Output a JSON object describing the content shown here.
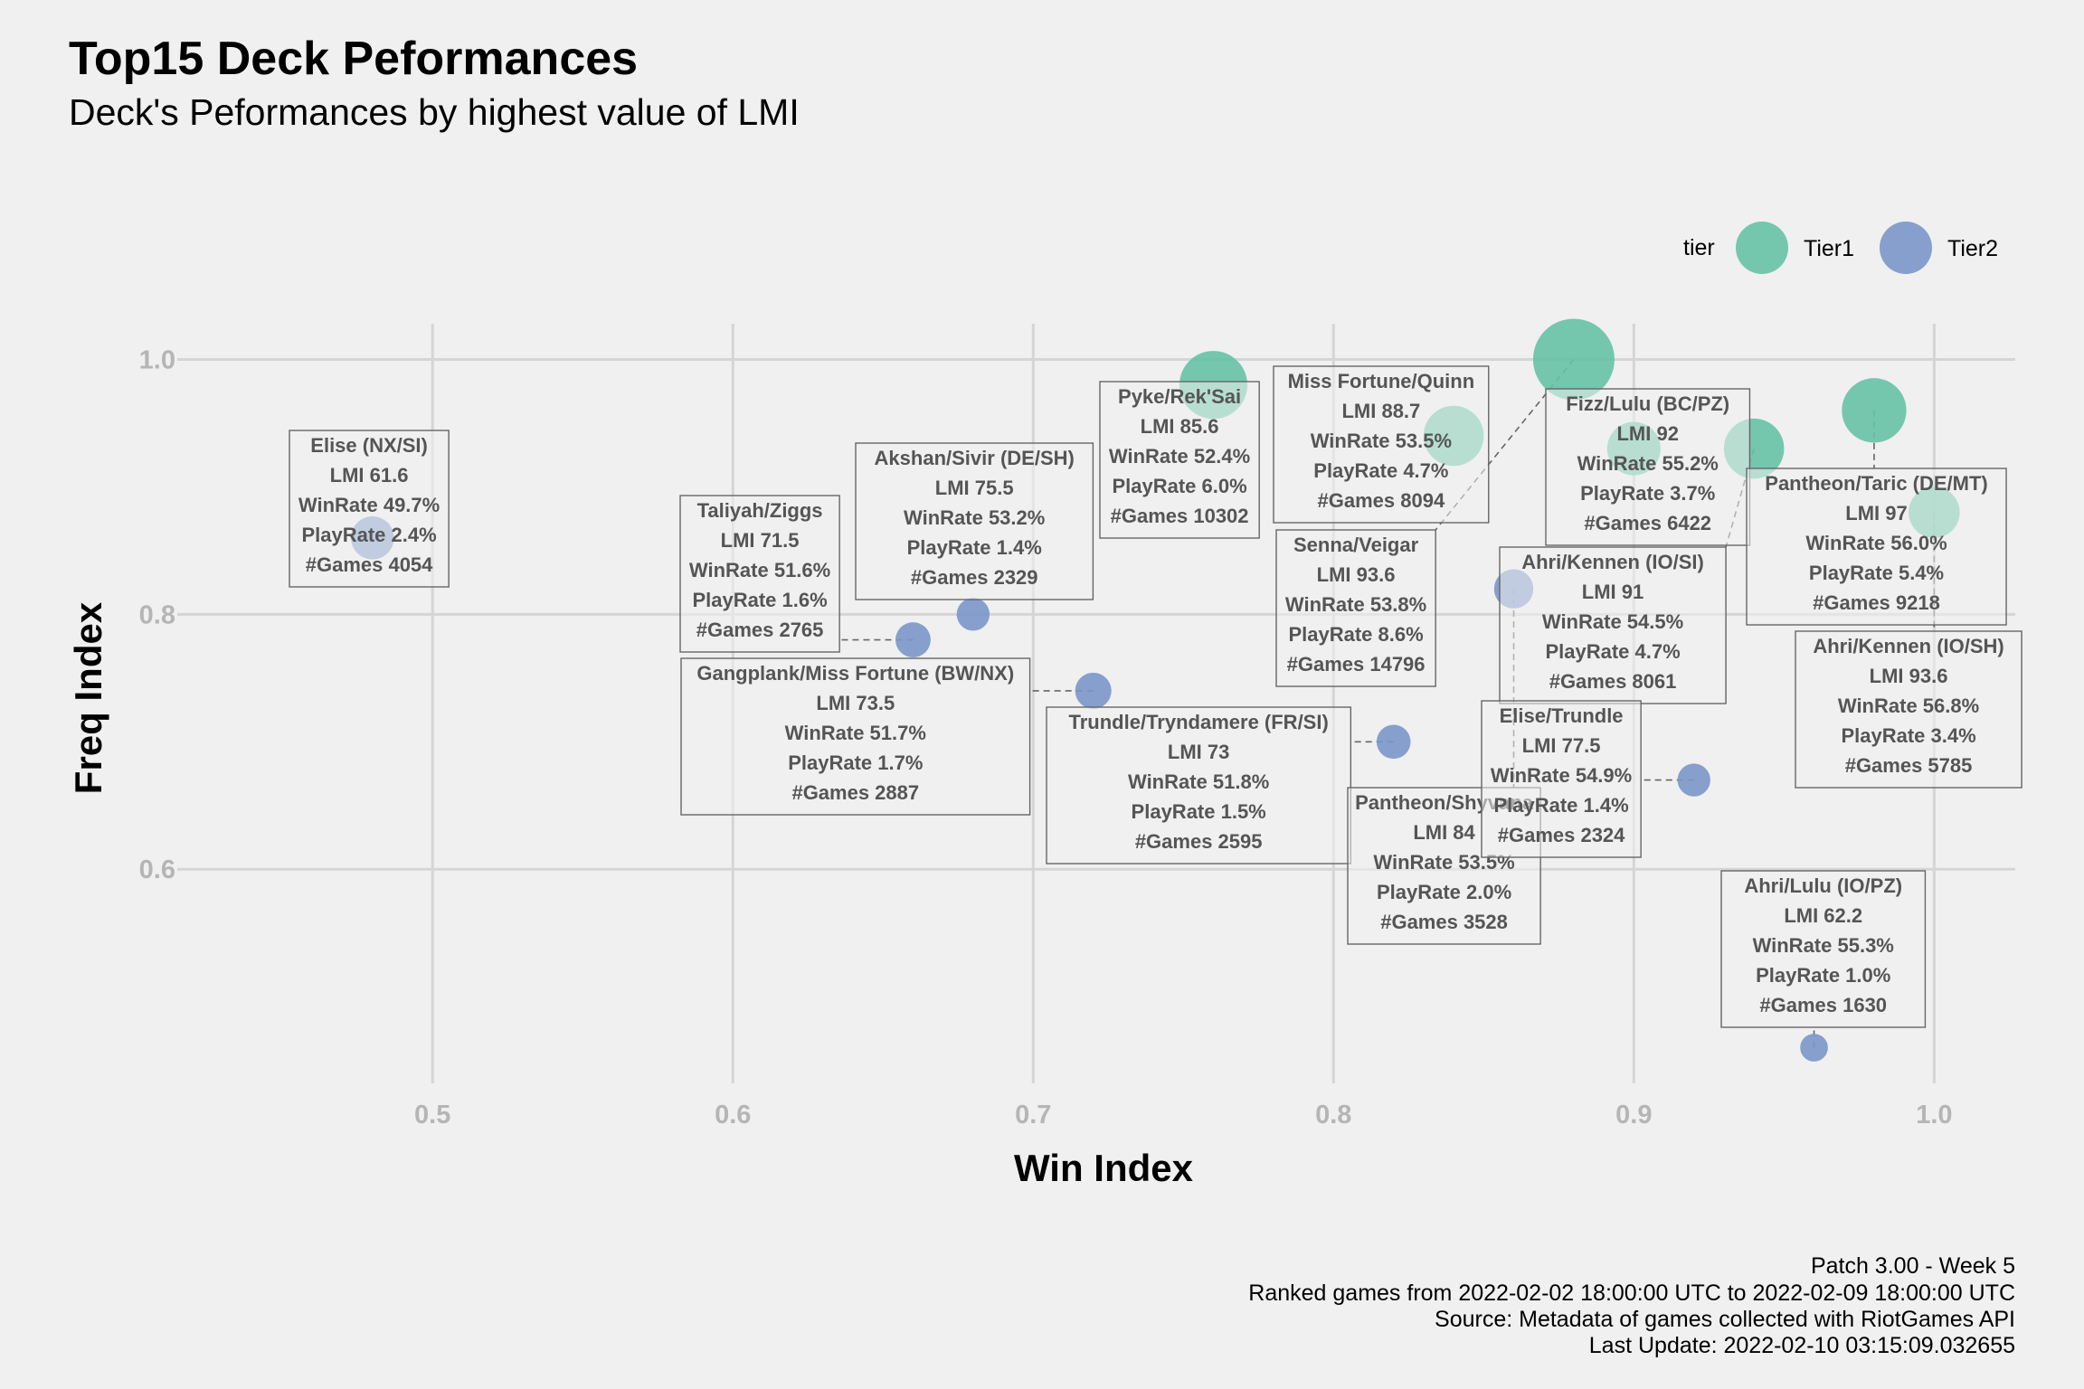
{
  "title": "Top15 Deck Peformances",
  "subtitle": "Deck's Peformances by highest value of LMI",
  "legend": {
    "title": "tier",
    "items": [
      {
        "label": "Tier1",
        "color": "#66c2a5"
      },
      {
        "label": "Tier2",
        "color": "#7b96c8"
      }
    ]
  },
  "caption": [
    "Patch 3.00 - Week 5",
    "Ranked games from 2022-02-02 18:00:00 UTC to 2022-02-09 18:00:00 UTC",
    "Source: Metadata of games collected with RiotGames API",
    "Last Update: 2022-02-10 03:15:09.032655"
  ],
  "chart_data": {
    "type": "scatter",
    "title": "Top15 Deck Peformances",
    "subtitle": "Deck's Peformances by highest value of LMI",
    "xlabel": "Win Index",
    "ylabel": "Freq Index",
    "xlim": [
      0.415,
      1.027
    ],
    "ylim": [
      0.432,
      1.028
    ],
    "xticks": [
      0.5,
      0.6,
      0.7,
      0.8,
      0.9,
      1.0
    ],
    "xtick_labels": [
      "0.5",
      "0.6",
      "0.7",
      "0.8",
      "0.9",
      "1.0"
    ],
    "yticks": [
      0.6,
      0.8,
      1.0
    ],
    "ytick_labels": [
      "0.6",
      "0.8",
      "1.0"
    ],
    "grid": true,
    "legend_position": "top-right",
    "size_variable": "PlayRate",
    "points": [
      {
        "deck": "Elise (NX/SI)",
        "tier": "Tier2",
        "x": 0.48,
        "y": 0.86,
        "lmi": "61.6",
        "winrate": "49.7%",
        "playrate": "2.4%",
        "games": "4054"
      },
      {
        "deck": "Taliyah/Ziggs",
        "tier": "Tier2",
        "x": 0.66,
        "y": 0.78,
        "lmi": "71.5",
        "winrate": "51.6%",
        "playrate": "1.6%",
        "games": "2765"
      },
      {
        "deck": "Akshan/Sivir (DE/SH)",
        "tier": "Tier2",
        "x": 0.68,
        "y": 0.8,
        "lmi": "75.5",
        "winrate": "53.2%",
        "playrate": "1.4%",
        "games": "2329"
      },
      {
        "deck": "Gangplank/Miss Fortune (BW/NX)",
        "tier": "Tier2",
        "x": 0.72,
        "y": 0.74,
        "lmi": "73.5",
        "winrate": "51.7%",
        "playrate": "1.7%",
        "games": "2887"
      },
      {
        "deck": "Pyke/Rek'Sai",
        "tier": "Tier1",
        "x": 0.76,
        "y": 0.98,
        "lmi": "85.6",
        "winrate": "52.4%",
        "playrate": "6.0%",
        "games": "10302"
      },
      {
        "deck": "Trundle/Tryndamere (FR/SI)",
        "tier": "Tier2",
        "x": 0.82,
        "y": 0.7,
        "lmi": "73",
        "winrate": "51.8%",
        "playrate": "1.5%",
        "games": "2595"
      },
      {
        "deck": "Miss Fortune/Quinn",
        "tier": "Tier1",
        "x": 0.84,
        "y": 0.94,
        "lmi": "88.7",
        "winrate": "53.5%",
        "playrate": "4.7%",
        "games": "8094"
      },
      {
        "deck": "Senna/Veigar",
        "tier": "Tier1",
        "x": 0.88,
        "y": 1.0,
        "lmi": "93.6",
        "winrate": "53.8%",
        "playrate": "8.6%",
        "games": "14796"
      },
      {
        "deck": "Pantheon/Shyvana",
        "tier": "Tier2",
        "x": 0.86,
        "y": 0.82,
        "lmi": "84",
        "winrate": "53.5%",
        "playrate": "2.0%",
        "games": "3528"
      },
      {
        "deck": "Fizz/Lulu (BC/PZ)",
        "tier": "Tier1",
        "x": 0.9,
        "y": 0.93,
        "lmi": "92",
        "winrate": "55.2%",
        "playrate": "3.7%",
        "games": "6422"
      },
      {
        "deck": "Ahri/Kennen (IO/SI)",
        "tier": "Tier1",
        "x": 0.94,
        "y": 0.93,
        "lmi": "91",
        "winrate": "54.5%",
        "playrate": "4.7%",
        "games": "8061"
      },
      {
        "deck": "Elise/Trundle",
        "tier": "Tier2",
        "x": 0.92,
        "y": 0.67,
        "lmi": "77.5",
        "winrate": "54.9%",
        "playrate": "1.4%",
        "games": "2324"
      },
      {
        "deck": "Pantheon/Taric (DE/MT)",
        "tier": "Tier1",
        "x": 0.98,
        "y": 0.96,
        "lmi": "97",
        "winrate": "56.0%",
        "playrate": "5.4%",
        "games": "9218"
      },
      {
        "deck": "Ahri/Kennen (IO/SH)",
        "tier": "Tier1",
        "x": 1.0,
        "y": 0.88,
        "lmi": "93.6",
        "winrate": "56.8%",
        "playrate": "3.4%",
        "games": "5785"
      },
      {
        "deck": "Ahri/Lulu (IO/PZ)",
        "tier": "Tier2",
        "x": 0.96,
        "y": 0.46,
        "lmi": "62.2",
        "winrate": "55.3%",
        "playrate": "1.0%",
        "games": "1630"
      }
    ]
  }
}
